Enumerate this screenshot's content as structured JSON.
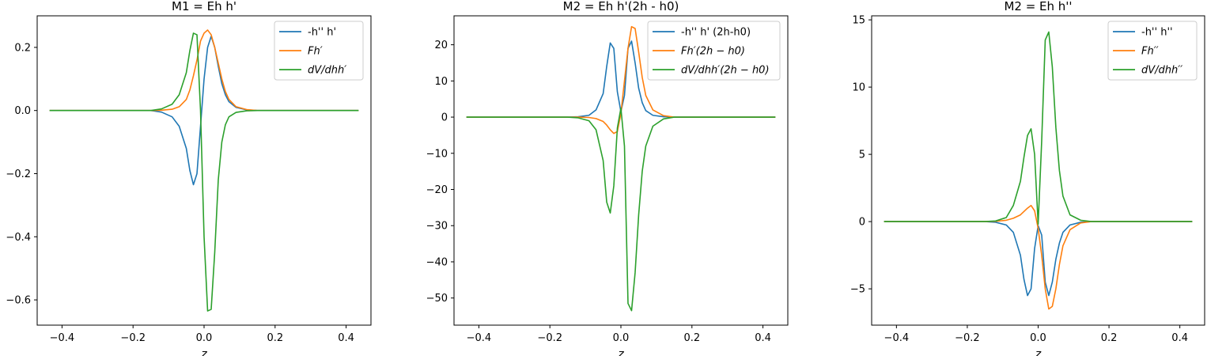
{
  "chart_data": [
    {
      "type": "line",
      "title": "M1 = Eh h'",
      "xlabel": "z",
      "ylabel": "",
      "xlim": [
        -0.47,
        0.47
      ],
      "ylim": [
        -0.68,
        0.3
      ],
      "xticks": [
        -0.4,
        -0.2,
        0.0,
        0.2,
        0.4
      ],
      "xtick_labels": [
        "−0.4",
        "−0.2",
        "0.0",
        "0.2",
        "0.4"
      ],
      "yticks": [
        0.2,
        0.0,
        -0.2,
        -0.4,
        -0.6
      ],
      "ytick_labels": [
        "0.2",
        "0.0",
        "−0.2",
        "−0.4",
        "−0.6"
      ],
      "grid": false,
      "legend_position": "upper right",
      "x": [
        -0.435,
        -0.15,
        -0.12,
        -0.09,
        -0.07,
        -0.05,
        -0.04,
        -0.03,
        -0.02,
        -0.01,
        0.0,
        0.01,
        0.02,
        0.03,
        0.04,
        0.05,
        0.06,
        0.07,
        0.09,
        0.12,
        0.15,
        0.435
      ],
      "series": [
        {
          "name": "-h'' h'",
          "color": "#1f77b4",
          "values": [
            0.0,
            0.0,
            -0.005,
            -0.02,
            -0.05,
            -0.12,
            -0.19,
            -0.235,
            -0.2,
            -0.05,
            0.1,
            0.2,
            0.235,
            0.2,
            0.14,
            0.085,
            0.05,
            0.028,
            0.01,
            0.002,
            0.0,
            0.0
          ]
        },
        {
          "name": "Fh′",
          "color": "#ff7f0e",
          "values": [
            0.0,
            0.0,
            0.001,
            0.004,
            0.012,
            0.035,
            0.065,
            0.11,
            0.16,
            0.22,
            0.245,
            0.255,
            0.24,
            0.2,
            0.15,
            0.1,
            0.06,
            0.035,
            0.012,
            0.003,
            0.0,
            0.0
          ]
        },
        {
          "name": "dV/dhh′",
          "color": "#2ca02c",
          "values": [
            0.0,
            0.0,
            0.005,
            0.02,
            0.05,
            0.12,
            0.19,
            0.245,
            0.24,
            0.0,
            -0.4,
            -0.635,
            -0.63,
            -0.45,
            -0.22,
            -0.1,
            -0.045,
            -0.02,
            -0.006,
            -0.001,
            0.0,
            0.0
          ]
        }
      ]
    },
    {
      "type": "line",
      "title": "M2 = Eh h'(2h - h0)",
      "xlabel": "z",
      "ylabel": "",
      "xlim": [
        -0.47,
        0.47
      ],
      "ylim": [
        -57.5,
        28.0
      ],
      "xticks": [
        -0.4,
        -0.2,
        0.0,
        0.2,
        0.4
      ],
      "xtick_labels": [
        "−0.4",
        "−0.2",
        "0.0",
        "0.2",
        "0.4"
      ],
      "yticks": [
        20,
        10,
        0,
        -10,
        -20,
        -30,
        -40,
        -50
      ],
      "ytick_labels": [
        "20",
        "10",
        "0",
        "−10",
        "−20",
        "−30",
        "−40",
        "−50"
      ],
      "grid": false,
      "legend_position": "upper right",
      "x": [
        -0.435,
        -0.15,
        -0.12,
        -0.09,
        -0.07,
        -0.05,
        -0.04,
        -0.03,
        -0.02,
        -0.01,
        0.0,
        0.01,
        0.02,
        0.03,
        0.04,
        0.05,
        0.06,
        0.07,
        0.09,
        0.12,
        0.15,
        0.435
      ],
      "series": [
        {
          "name": "-h'' h' (2h-h0)",
          "color": "#1f77b4",
          "values": [
            0.0,
            0.0,
            0.1,
            0.5,
            2.0,
            6.5,
            14.0,
            20.5,
            19.0,
            7.0,
            1.5,
            6.0,
            19.0,
            21.0,
            15.0,
            8.0,
            4.0,
            1.8,
            0.5,
            0.1,
            0.0,
            0.0
          ]
        },
        {
          "name": "Fh′(2h − h0)",
          "color": "#ff7f0e",
          "values": [
            0.0,
            0.0,
            0.0,
            -0.1,
            -0.4,
            -1.2,
            -2.2,
            -3.5,
            -4.5,
            -4.0,
            1.0,
            10.0,
            19.0,
            25.0,
            24.5,
            18.0,
            11.0,
            6.0,
            2.0,
            0.4,
            0.0,
            0.0
          ]
        },
        {
          "name": "dV/dhh′(2h − h0)",
          "color": "#2ca02c",
          "values": [
            0.0,
            0.0,
            -0.2,
            -1.0,
            -3.5,
            -12.0,
            -23.5,
            -26.5,
            -19.0,
            -3.0,
            2.5,
            -8.0,
            -51.5,
            -53.5,
            -43.0,
            -27.0,
            -15.0,
            -8.0,
            -2.5,
            -0.5,
            0.0,
            0.0
          ]
        }
      ]
    },
    {
      "type": "line",
      "title": "M2 = Eh h''",
      "xlabel": "z",
      "ylabel": "",
      "xlim": [
        -0.47,
        0.47
      ],
      "ylim": [
        -7.7,
        15.3
      ],
      "xticks": [
        -0.4,
        -0.2,
        0.0,
        0.2,
        0.4
      ],
      "xtick_labels": [
        "−0.4",
        "−0.2",
        "0.0",
        "0.2",
        "0.4"
      ],
      "yticks": [
        15,
        10,
        5,
        0,
        -5
      ],
      "ytick_labels": [
        "15",
        "10",
        "5",
        "0",
        "−5"
      ],
      "grid": false,
      "legend_position": "upper right",
      "x": [
        -0.435,
        -0.15,
        -0.12,
        -0.09,
        -0.07,
        -0.05,
        -0.04,
        -0.03,
        -0.02,
        -0.01,
        0.0,
        0.01,
        0.02,
        0.03,
        0.04,
        0.05,
        0.06,
        0.07,
        0.09,
        0.12,
        0.15,
        0.435
      ],
      "series": [
        {
          "name": "-h'' h''",
          "color": "#1f77b4",
          "values": [
            0.0,
            0.0,
            -0.05,
            -0.25,
            -0.8,
            -2.5,
            -4.3,
            -5.5,
            -5.0,
            -2.0,
            -0.3,
            -1.0,
            -4.5,
            -5.5,
            -4.5,
            -2.8,
            -1.6,
            -0.8,
            -0.25,
            -0.05,
            0.0,
            0.0
          ]
        },
        {
          "name": "Fh′′",
          "color": "#ff7f0e",
          "values": [
            0.0,
            0.0,
            0.02,
            0.1,
            0.25,
            0.5,
            0.75,
            1.0,
            1.2,
            0.8,
            -0.5,
            -2.5,
            -5.0,
            -6.5,
            -6.3,
            -5.0,
            -3.2,
            -1.8,
            -0.6,
            -0.1,
            0.0,
            0.0
          ]
        },
        {
          "name": "dV/dhh′′",
          "color": "#2ca02c",
          "values": [
            0.0,
            0.0,
            0.05,
            0.3,
            1.2,
            3.0,
            4.8,
            6.4,
            6.9,
            5.0,
            -0.2,
            6.0,
            13.5,
            14.1,
            11.5,
            7.0,
            3.8,
            1.9,
            0.5,
            0.1,
            0.0,
            0.0
          ]
        }
      ]
    }
  ]
}
